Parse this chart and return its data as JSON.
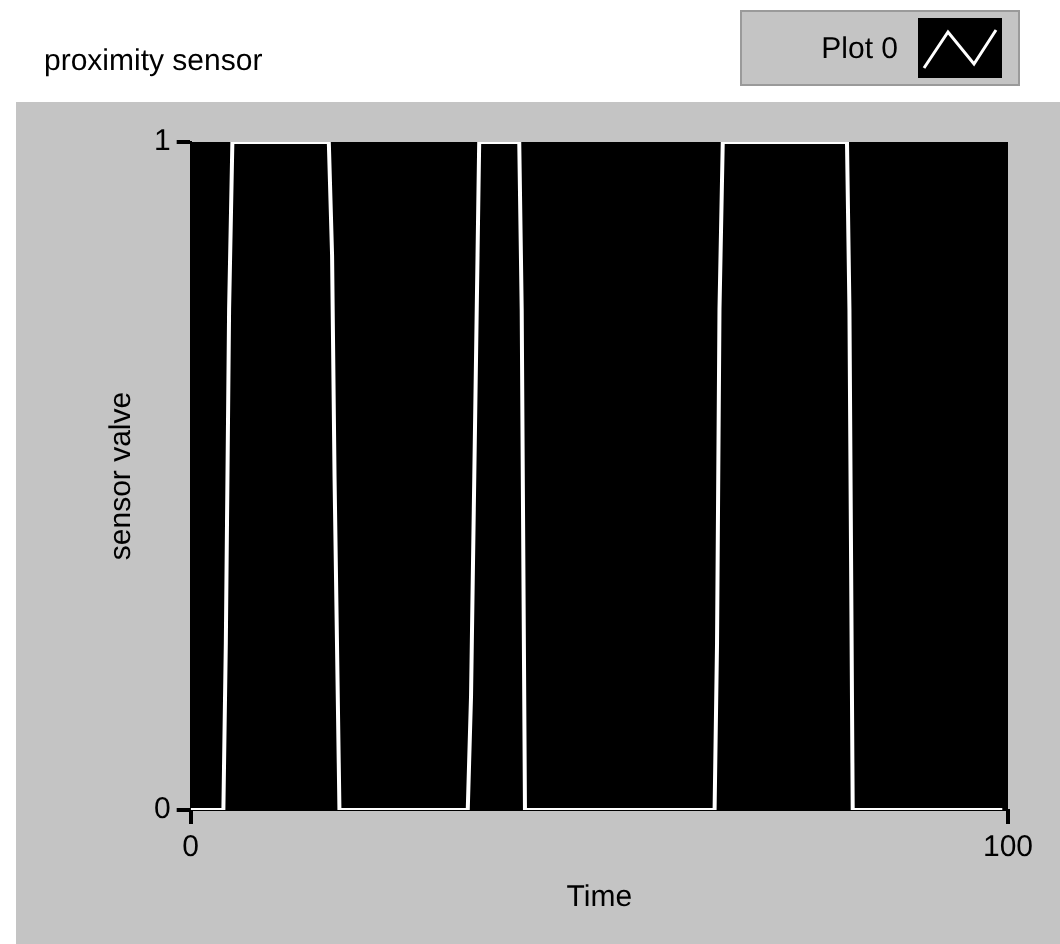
{
  "chart_data": {
    "type": "line",
    "title": "proximity sensor",
    "xlabel": "Time",
    "ylabel": "sensor valve",
    "xlim": [
      0,
      100
    ],
    "xticks": [
      0,
      100
    ],
    "ylim": [
      0,
      1
    ],
    "yticks": [
      0,
      1
    ],
    "grid": false,
    "legend": "top right",
    "marker": "none",
    "line_style": "solid",
    "x": [
      0,
      4,
      4.3,
      4.7,
      5.1,
      16.9,
      17.3,
      17.6,
      18.2,
      33.9,
      34.3,
      34.7,
      35.3,
      40.2,
      40.5,
      40.9,
      64.1,
      64.4,
      64.7,
      65.1,
      80.3,
      80.6,
      81.0,
      99.3
    ],
    "series": [
      {
        "name": "Plot 0",
        "color": "#ffffff",
        "values": [
          0,
          0,
          0.25,
          0.75,
          1,
          1,
          0.83,
          0.5,
          0,
          0,
          0.17,
          0.5,
          1,
          1,
          0.75,
          0,
          0,
          0.25,
          0.75,
          1,
          1,
          0.75,
          0,
          0
        ]
      }
    ]
  }
}
